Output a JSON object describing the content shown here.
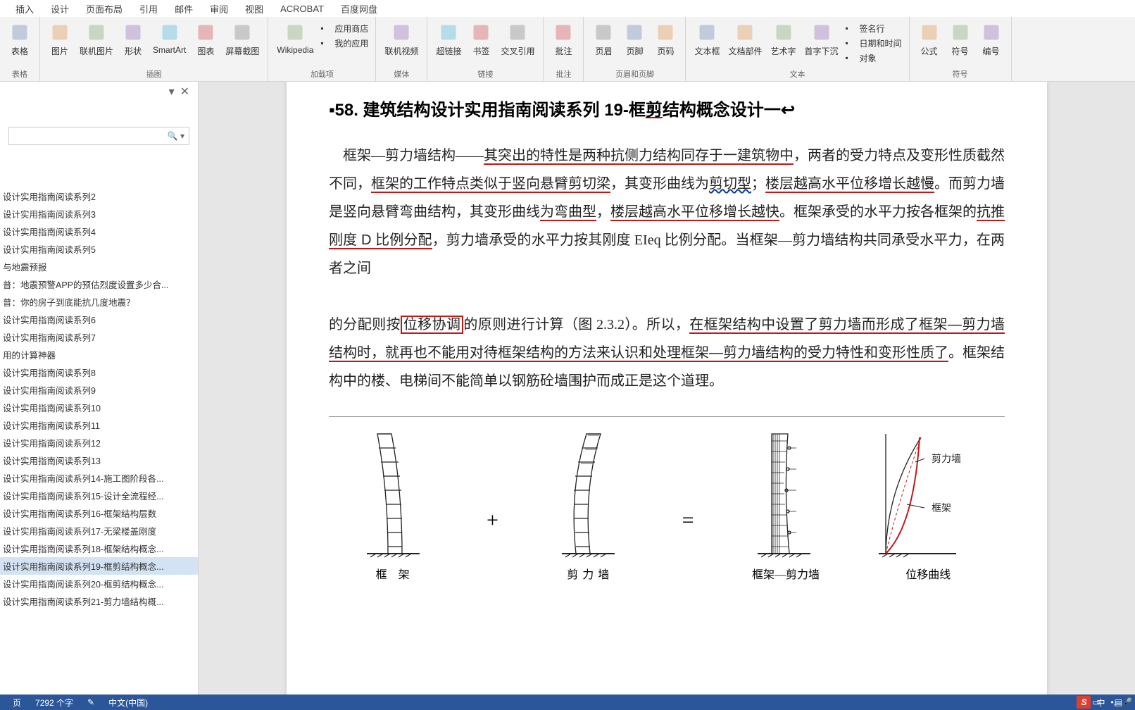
{
  "tabs": [
    "插入",
    "设计",
    "页面布局",
    "引用",
    "邮件",
    "审阅",
    "视图",
    "ACROBAT",
    "百度网盘"
  ],
  "ribbon": {
    "groups": [
      {
        "label": "表格",
        "items": [
          {
            "label": "表格",
            "name": "table-button"
          }
        ]
      },
      {
        "label": "插图",
        "items": [
          {
            "label": "图片",
            "name": "picture-button"
          },
          {
            "label": "联机图片",
            "name": "online-picture-button"
          },
          {
            "label": "形状",
            "name": "shapes-button"
          },
          {
            "label": "SmartArt",
            "name": "smartart-button"
          },
          {
            "label": "图表",
            "name": "chart-button"
          },
          {
            "label": "屏幕截图",
            "name": "screenshot-button"
          }
        ]
      },
      {
        "label": "加载项",
        "items_small": [
          "应用商店",
          "我的应用"
        ],
        "items": [
          {
            "label": "Wikipedia",
            "name": "wikipedia-button"
          }
        ]
      },
      {
        "label": "媒体",
        "items": [
          {
            "label": "联机视频",
            "name": "online-video-button"
          }
        ]
      },
      {
        "label": "链接",
        "items": [
          {
            "label": "超链接",
            "name": "hyperlink-button"
          },
          {
            "label": "书签",
            "name": "bookmark-button"
          },
          {
            "label": "交叉引用",
            "name": "crossref-button"
          }
        ]
      },
      {
        "label": "批注",
        "items": [
          {
            "label": "批注",
            "name": "comment-button"
          }
        ]
      },
      {
        "label": "页眉和页脚",
        "items": [
          {
            "label": "页眉",
            "name": "header-button"
          },
          {
            "label": "页脚",
            "name": "footer-button"
          },
          {
            "label": "页码",
            "name": "pagenum-button"
          }
        ]
      },
      {
        "label": "文本",
        "items": [
          {
            "label": "文本框",
            "name": "textbox-button"
          },
          {
            "label": "文档部件",
            "name": "quickparts-button"
          },
          {
            "label": "艺术字",
            "name": "wordart-button"
          },
          {
            "label": "首字下沉",
            "name": "dropcap-button"
          }
        ],
        "items_small": [
          "签名行",
          "日期和时间",
          "对象"
        ]
      },
      {
        "label": "符号",
        "items": [
          {
            "label": "公式",
            "name": "equation-button"
          },
          {
            "label": "符号",
            "name": "symbol-button"
          },
          {
            "label": "编号",
            "name": "number-button"
          }
        ]
      }
    ]
  },
  "nav": {
    "search_placeholder": "",
    "items": [
      "设计实用指南阅读系列2",
      "设计实用指南阅读系列3",
      "设计实用指南阅读系列4",
      "设计实用指南阅读系列5",
      "与地震预报",
      "普：地震预警APP的预估烈度设置多少合...",
      "普：你的房子到底能抗几度地震？",
      "设计实用指南阅读系列6",
      "设计实用指南阅读系列7",
      "用的计算神器",
      "设计实用指南阅读系列8",
      "设计实用指南阅读系列9",
      "设计实用指南阅读系列10",
      "设计实用指南阅读系列11",
      "设计实用指南阅读系列12",
      "设计实用指南阅读系列13",
      "设计实用指南阅读系列14-施工图阶段各...",
      "设计实用指南阅读系列15-设计全流程经...",
      "设计实用指南阅读系列16-框架结构层数",
      "设计实用指南阅读系列17-无梁楼盖刚度",
      "设计实用指南阅读系列18-框架结构概念...",
      "设计实用指南阅读系列19-框剪结构概念...",
      "设计实用指南阅读系列20-框剪结构概念...",
      "设计实用指南阅读系列21-剪力墙结构概..."
    ],
    "active_index": 21
  },
  "document": {
    "title_prefix": "58. 建筑结构设计实用指南阅读系列 19-框",
    "title_u": "剪",
    "title_suffix": "结构概念设计一",
    "diagram": {
      "type": "infographic",
      "labels": [
        "框 架",
        "剪力墙",
        "框架—剪力墙",
        "位移曲线"
      ],
      "ops": [
        "+",
        "="
      ],
      "annotate1": "剪力墙",
      "annotate2": "框架",
      "colors": {
        "ink": "#222",
        "accent": "#c41818"
      }
    }
  },
  "status": {
    "page": "页",
    "words": "7292 个字",
    "lang": "中文(中国)",
    "ime_mode": "中"
  }
}
